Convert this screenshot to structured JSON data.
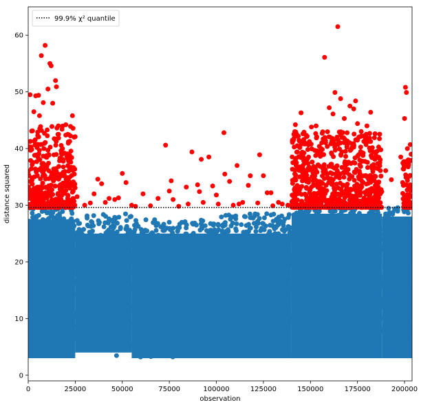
{
  "chart_data": {
    "type": "scatter",
    "title": "",
    "xlabel": "observation",
    "ylabel": "distance squared",
    "xlim": [
      0,
      204000
    ],
    "ylim": [
      -1,
      65
    ],
    "x_ticks": [
      0,
      25000,
      50000,
      75000,
      100000,
      125000,
      150000,
      175000,
      200000
    ],
    "x_tick_labels": [
      "0",
      "25000",
      "50000",
      "75000",
      "100000",
      "125000",
      "150000",
      "175000",
      "200000"
    ],
    "y_ticks": [
      0,
      10,
      20,
      30,
      40,
      50,
      60
    ],
    "y_tick_labels": [
      "0",
      "10",
      "20",
      "30",
      "40",
      "50",
      "60"
    ],
    "grid": false,
    "legend_placement": "top-left",
    "threshold": {
      "label": "99.9% χ² quantile",
      "y": 29.6,
      "style": "dotted",
      "color": "#000000"
    },
    "series": [
      {
        "color": "#1f77b4",
        "description_band": "below threshold",
        "y_floor": 2.5,
        "bands": [
          {
            "x": [
              0,
              25000
            ],
            "y": [
              2.5,
              29.6
            ]
          },
          {
            "x": [
              25000,
              55000
            ],
            "y": [
              3.0,
              28.5
            ]
          },
          {
            "x": [
              55000,
              100000
            ],
            "y": [
              2.5,
              27.5
            ]
          },
          {
            "x": [
              100000,
              140000
            ],
            "y": [
              2.5,
              28.5
            ]
          },
          {
            "x": [
              140000,
              188000
            ],
            "y": [
              2.5,
              29.6
            ]
          },
          {
            "x": [
              188000,
              204000
            ],
            "y": [
              2.5,
              29.6
            ]
          }
        ]
      },
      {
        "color": "#ff0000",
        "description_band": "above threshold",
        "points": [
          [
            1000,
            49.5
          ],
          [
            3000,
            46.5
          ],
          [
            4000,
            49.3
          ],
          [
            5500,
            49.4
          ],
          [
            7000,
            56.4
          ],
          [
            9000,
            58.2
          ],
          [
            10500,
            50.5
          ],
          [
            11500,
            55.0
          ],
          [
            12200,
            54.6
          ],
          [
            13000,
            48.0
          ],
          [
            14500,
            52.0
          ],
          [
            15000,
            50.9
          ],
          [
            8000,
            48.1
          ],
          [
            6000,
            45.8
          ],
          [
            16000,
            44.0
          ],
          [
            18000,
            43.4
          ],
          [
            20000,
            44.2
          ],
          [
            22500,
            43.9
          ],
          [
            23500,
            45.8
          ],
          [
            24500,
            35.5
          ],
          [
            26000,
            31.5
          ],
          [
            30000,
            30.0
          ],
          [
            33000,
            30.4
          ],
          [
            35000,
            32.0
          ],
          [
            37000,
            34.6
          ],
          [
            39000,
            33.8
          ],
          [
            41000,
            30.5
          ],
          [
            43000,
            31.2
          ],
          [
            46000,
            31.0
          ],
          [
            48000,
            31.3
          ],
          [
            50000,
            35.6
          ],
          [
            52000,
            34.0
          ],
          [
            55000,
            30.0
          ],
          [
            57000,
            29.8
          ],
          [
            61000,
            32.0
          ],
          [
            65000,
            29.9
          ],
          [
            69000,
            31.2
          ],
          [
            73000,
            40.6
          ],
          [
            75000,
            32.5
          ],
          [
            76000,
            34.3
          ],
          [
            77000,
            31.0
          ],
          [
            80000,
            29.8
          ],
          [
            84000,
            33.2
          ],
          [
            85000,
            30.2
          ],
          [
            87000,
            39.4
          ],
          [
            90000,
            33.6
          ],
          [
            91000,
            32.4
          ],
          [
            92000,
            38.1
          ],
          [
            93000,
            30.5
          ],
          [
            96000,
            38.5
          ],
          [
            98000,
            33.4
          ],
          [
            100000,
            31.8
          ],
          [
            101000,
            30.2
          ],
          [
            104000,
            42.8
          ],
          [
            104500,
            35.5
          ],
          [
            107000,
            34.2
          ],
          [
            109000,
            30.0
          ],
          [
            111000,
            37.0
          ],
          [
            112000,
            30.2
          ],
          [
            114000,
            30.5
          ],
          [
            117000,
            33.5
          ],
          [
            118000,
            35.2
          ],
          [
            122000,
            30.4
          ],
          [
            123000,
            38.9
          ],
          [
            125000,
            35.2
          ],
          [
            127000,
            32.2
          ],
          [
            129000,
            32.2
          ],
          [
            130000,
            29.9
          ],
          [
            133000,
            30.5
          ],
          [
            135000,
            30.2
          ],
          [
            138000,
            30.0
          ],
          [
            141000,
            41.5
          ],
          [
            142000,
            44.2
          ],
          [
            143000,
            40.5
          ],
          [
            145000,
            46.3
          ],
          [
            146000,
            42.6
          ],
          [
            147000,
            40.8
          ],
          [
            149000,
            38.5
          ],
          [
            150500,
            43.8
          ],
          [
            153000,
            44.0
          ],
          [
            156000,
            41.0
          ],
          [
            157500,
            56.1
          ],
          [
            160000,
            47.2
          ],
          [
            162000,
            46.1
          ],
          [
            163000,
            49.9
          ],
          [
            164500,
            61.5
          ],
          [
            166000,
            48.8
          ],
          [
            168000,
            45.3
          ],
          [
            171000,
            47.5
          ],
          [
            173000,
            47.0
          ],
          [
            174000,
            48.4
          ],
          [
            175000,
            44.4
          ],
          [
            177000,
            43.0
          ],
          [
            180000,
            44.0
          ],
          [
            182000,
            46.4
          ],
          [
            184000,
            41.9
          ],
          [
            186000,
            33.2
          ],
          [
            190000,
            36.1
          ],
          [
            193000,
            34.5
          ],
          [
            198000,
            38.5
          ],
          [
            200500,
            50.8
          ],
          [
            201000,
            49.9
          ],
          [
            202000,
            38.0
          ],
          [
            203000,
            40.7
          ],
          [
            201500,
            40.0
          ],
          [
            200000,
            45.3
          ],
          [
            199000,
            34.0
          ],
          [
            202500,
            37.7
          ],
          [
            203500,
            39.0
          ]
        ]
      }
    ]
  }
}
